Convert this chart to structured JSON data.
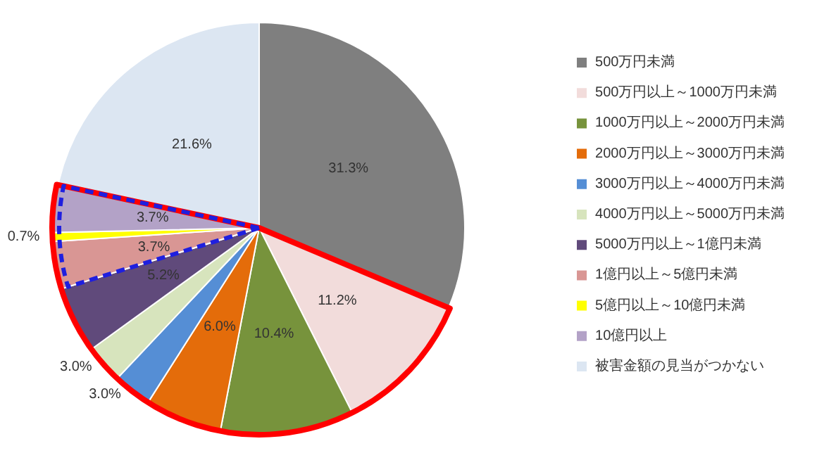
{
  "chart_data": {
    "type": "pie",
    "categories": [
      "500万円未満",
      "500万円以上～1000万円未満",
      "1000万円以上～2000万円未満",
      "2000万円以上～3000万円未満",
      "3000万円以上～4000万円未満",
      "4000万円以上～5000万円未満",
      "5000万円以上～1億円未満",
      "1億円以上～5億円未満",
      "5億円以上～10億円未満",
      "10億円以上",
      "被害金額の見当がつかない"
    ],
    "values": [
      31.3,
      11.2,
      10.4,
      6.0,
      3.0,
      3.0,
      5.2,
      3.7,
      0.7,
      3.7,
      21.6
    ],
    "colors": [
      "#7f7f7f",
      "#f2dcdb",
      "#77933c",
      "#e46c0a",
      "#558ed5",
      "#d7e4bd",
      "#604a7b",
      "#d99694",
      "#ffff00",
      "#b3a2c7",
      "#dce6f2"
    ],
    "value_labels": [
      "31.3%",
      "11.2%",
      "10.4%",
      "6.0%",
      "3.0%",
      "3.0%",
      "5.2%",
      "3.7%",
      "0.7%",
      "3.7%",
      "21.6%"
    ],
    "legend": "right"
  }
}
